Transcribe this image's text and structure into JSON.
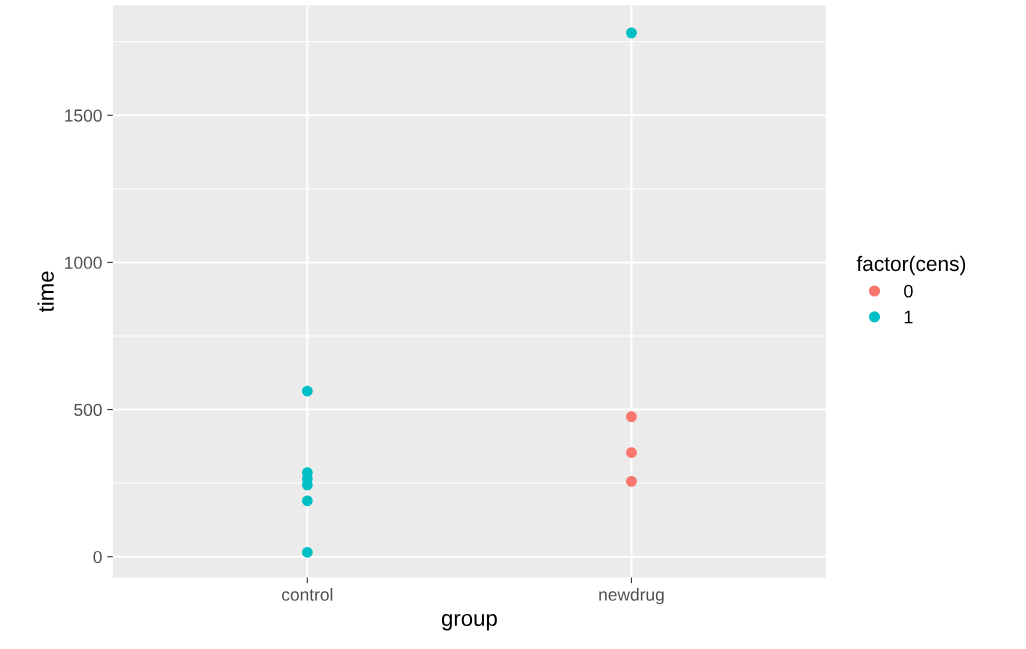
{
  "chart_data": {
    "type": "scatter",
    "xlabel": "group",
    "ylabel": "time",
    "legend_title": "factor(cens)",
    "categories": [
      "control",
      "newdrug"
    ],
    "series": [
      {
        "name": "0",
        "color": "#f8766d",
        "x": [
          "newdrug",
          "newdrug",
          "newdrug"
        ],
        "values": [
          476,
          354,
          256
        ]
      },
      {
        "name": "1",
        "color": "#00bfc4",
        "x": [
          "control",
          "control",
          "control",
          "control",
          "control",
          "control",
          "newdrug"
        ],
        "values": [
          563,
          286,
          265,
          244,
          190,
          15,
          1780
        ]
      }
    ],
    "ylim": [
      -71,
      1874
    ],
    "yticks": [
      0,
      500,
      1000,
      1500
    ],
    "grid": true,
    "legend": "right",
    "marker": "circle"
  }
}
